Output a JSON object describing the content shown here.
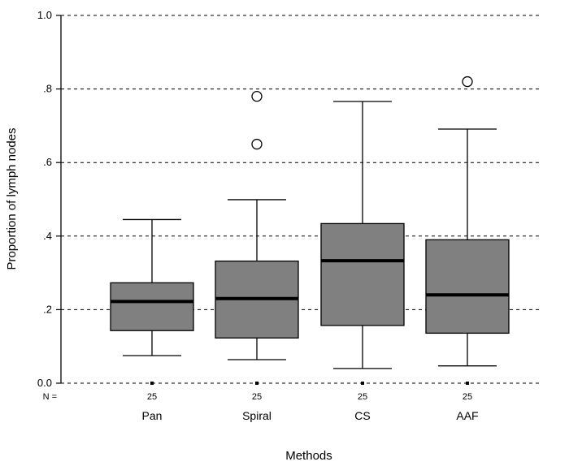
{
  "chart_data": {
    "type": "box",
    "xlabel": "Methods",
    "ylabel": "Proportion of lymph nodes",
    "ylim": [
      0,
      1
    ],
    "yticks": [
      {
        "value": 0.0,
        "label": "0.0"
      },
      {
        "value": 0.2,
        "label": ".2"
      },
      {
        "value": 0.4,
        "label": ".4"
      },
      {
        "value": 0.6,
        "label": ".6"
      },
      {
        "value": 0.8,
        "label": ".8"
      },
      {
        "value": 1.0,
        "label": "1.0"
      }
    ],
    "grid": "horizontal-dashed",
    "n_prefix": "N =",
    "categories": [
      "Pan",
      "Spiral",
      "CS",
      "AAF"
    ],
    "boxes": [
      {
        "name": "Pan",
        "n": "25",
        "min": 0.075,
        "q1": 0.143,
        "median": 0.222,
        "q3": 0.273,
        "max": 0.445,
        "outliers": []
      },
      {
        "name": "Spiral",
        "n": "25",
        "min": 0.064,
        "q1": 0.123,
        "median": 0.23,
        "q3": 0.332,
        "max": 0.499,
        "outliers": [
          0.65,
          0.78
        ]
      },
      {
        "name": "CS",
        "n": "25",
        "min": 0.04,
        "q1": 0.157,
        "median": 0.333,
        "q3": 0.434,
        "max": 0.766,
        "outliers": []
      },
      {
        "name": "AAF",
        "n": "25",
        "min": 0.047,
        "q1": 0.136,
        "median": 0.24,
        "q3": 0.39,
        "max": 0.691,
        "outliers": [
          0.82
        ]
      }
    ],
    "colors": {
      "box_fill": "#808080",
      "line": "#000000",
      "grid": "#000000"
    }
  }
}
